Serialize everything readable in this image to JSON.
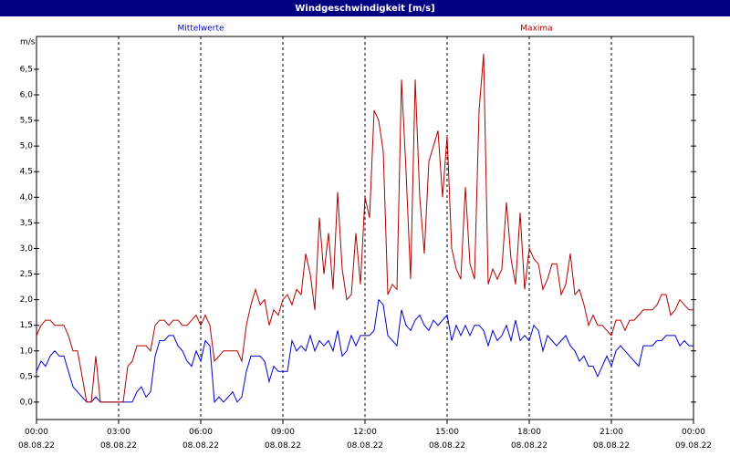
{
  "chart_data": {
    "type": "line",
    "title": "Windgeschwindigkeit [m/s]",
    "y_label": "m/s",
    "xlim": [
      0,
      1440
    ],
    "ylim": [
      -0.34,
      7.14
    ],
    "grid": "x",
    "xticks": [
      {
        "value": 0,
        "label": "00:00\n08.08.22"
      },
      {
        "value": 180,
        "label": "03:00\n08.08.22"
      },
      {
        "value": 360,
        "label": "06:00\n08.08.22"
      },
      {
        "value": 540,
        "label": "09:00\n08.08.22"
      },
      {
        "value": 720,
        "label": "12:00\n08.08.22"
      },
      {
        "value": 900,
        "label": "15:00\n08.08.22"
      },
      {
        "value": 1080,
        "label": "18:00\n08.08.22"
      },
      {
        "value": 1260,
        "label": "21:00\n08.08.22"
      },
      {
        "value": 1440,
        "label": "00:00\n09.08.22"
      }
    ],
    "yticks": [
      {
        "value": 0,
        "label": "0,0"
      },
      {
        "value": 0.5,
        "label": "0,5"
      },
      {
        "value": 1,
        "label": "1,0"
      },
      {
        "value": 1.5,
        "label": "1,5"
      },
      {
        "value": 2,
        "label": "2,0"
      },
      {
        "value": 2.5,
        "label": "2,5"
      },
      {
        "value": 3,
        "label": "3,0"
      },
      {
        "value": 3.5,
        "label": "3,5"
      },
      {
        "value": 4,
        "label": "4,0"
      },
      {
        "value": 4.5,
        "label": "4,5"
      },
      {
        "value": 5,
        "label": "5,0"
      },
      {
        "value": 5.5,
        "label": "5,5"
      },
      {
        "value": 6,
        "label": "6,0"
      },
      {
        "value": 6.5,
        "label": "6,5"
      }
    ],
    "x": [
      0,
      10,
      20,
      30,
      40,
      50,
      60,
      70,
      80,
      90,
      100,
      110,
      120,
      130,
      140,
      150,
      160,
      170,
      180,
      190,
      200,
      210,
      220,
      230,
      240,
      250,
      260,
      270,
      280,
      290,
      300,
      310,
      320,
      330,
      340,
      350,
      360,
      370,
      380,
      390,
      400,
      410,
      420,
      430,
      440,
      450,
      460,
      470,
      480,
      490,
      500,
      510,
      520,
      530,
      540,
      550,
      560,
      570,
      580,
      590,
      600,
      610,
      620,
      630,
      640,
      650,
      660,
      670,
      680,
      690,
      700,
      710,
      720,
      730,
      740,
      750,
      760,
      770,
      780,
      790,
      800,
      810,
      820,
      830,
      840,
      850,
      860,
      870,
      880,
      890,
      900,
      910,
      920,
      930,
      940,
      950,
      960,
      970,
      980,
      990,
      1000,
      1010,
      1020,
      1030,
      1040,
      1050,
      1060,
      1070,
      1080,
      1090,
      1100,
      1110,
      1120,
      1130,
      1140,
      1150,
      1160,
      1170,
      1180,
      1190,
      1200,
      1210,
      1220,
      1230,
      1240,
      1250,
      1260,
      1270,
      1280,
      1290,
      1300,
      1310,
      1320,
      1330,
      1340,
      1350,
      1360,
      1370,
      1380,
      1390,
      1400,
      1410,
      1420,
      1430,
      1440
    ],
    "series": [
      {
        "name": "Mittelwerte",
        "color": "#0000c8",
        "values": [
          0.6,
          0.8,
          0.7,
          0.9,
          1.0,
          0.9,
          0.9,
          0.6,
          0.3,
          0.2,
          0.1,
          0.0,
          0.0,
          0.1,
          0.0,
          0.0,
          0.0,
          0.0,
          0.0,
          0.0,
          0.0,
          0.0,
          0.2,
          0.3,
          0.1,
          0.2,
          0.9,
          1.2,
          1.2,
          1.3,
          1.3,
          1.1,
          1.0,
          0.8,
          0.7,
          1.0,
          0.8,
          1.2,
          1.1,
          0.0,
          0.1,
          0.0,
          0.1,
          0.2,
          0.0,
          0.1,
          0.6,
          0.9,
          0.9,
          0.9,
          0.8,
          0.4,
          0.7,
          0.6,
          0.6,
          0.6,
          1.2,
          1.0,
          1.1,
          1.0,
          1.3,
          1.0,
          1.2,
          1.1,
          1.2,
          1.0,
          1.4,
          0.9,
          1.0,
          1.3,
          1.1,
          1.3,
          1.3,
          1.3,
          1.4,
          2.0,
          1.9,
          1.3,
          1.2,
          1.1,
          1.8,
          1.5,
          1.4,
          1.6,
          1.7,
          1.5,
          1.4,
          1.6,
          1.5,
          1.6,
          1.7,
          1.2,
          1.5,
          1.3,
          1.5,
          1.3,
          1.5,
          1.5,
          1.4,
          1.1,
          1.4,
          1.2,
          1.3,
          1.5,
          1.2,
          1.6,
          1.2,
          1.3,
          1.2,
          1.5,
          1.4,
          1.0,
          1.3,
          1.2,
          1.1,
          1.2,
          1.3,
          1.1,
          1.0,
          0.8,
          0.9,
          0.7,
          0.7,
          0.5,
          0.7,
          0.9,
          0.7,
          1.0,
          1.1,
          1.0,
          0.9,
          0.8,
          0.7,
          1.1,
          1.1,
          1.1,
          1.2,
          1.2,
          1.3,
          1.3,
          1.3,
          1.1,
          1.2,
          1.1,
          1.1
        ]
      },
      {
        "name": "Maxima",
        "color": "#b00000",
        "values": [
          1.3,
          1.5,
          1.6,
          1.6,
          1.5,
          1.5,
          1.5,
          1.3,
          1.0,
          1.0,
          0.5,
          0.0,
          0.0,
          0.9,
          0.0,
          0.0,
          0.0,
          0.0,
          0.0,
          0.0,
          0.7,
          0.8,
          1.1,
          1.1,
          1.1,
          1.0,
          1.5,
          1.6,
          1.6,
          1.5,
          1.6,
          1.6,
          1.5,
          1.5,
          1.6,
          1.7,
          1.5,
          1.7,
          1.5,
          0.8,
          0.9,
          1.0,
          1.0,
          1.0,
          1.0,
          0.8,
          1.5,
          1.9,
          2.2,
          1.9,
          2.0,
          1.5,
          1.8,
          1.7,
          2.0,
          2.1,
          1.9,
          2.2,
          2.1,
          2.9,
          2.5,
          1.8,
          3.6,
          2.5,
          3.3,
          2.2,
          4.1,
          2.6,
          2.0,
          2.1,
          3.3,
          2.3,
          4.0,
          3.6,
          5.7,
          5.5,
          4.9,
          2.1,
          2.3,
          2.2,
          6.3,
          4.5,
          2.4,
          6.3,
          4.0,
          2.9,
          4.7,
          5.0,
          5.3,
          4.0,
          5.2,
          3.0,
          2.6,
          2.4,
          4.2,
          2.7,
          2.4,
          5.7,
          6.8,
          2.3,
          2.6,
          2.4,
          2.6,
          3.9,
          2.8,
          2.3,
          3.7,
          2.2,
          3.0,
          2.8,
          2.7,
          2.2,
          2.4,
          2.7,
          2.7,
          2.1,
          2.3,
          2.9,
          2.1,
          2.2,
          1.9,
          1.5,
          1.7,
          1.5,
          1.5,
          1.4,
          1.3,
          1.6,
          1.6,
          1.4,
          1.6,
          1.6,
          1.7,
          1.8,
          1.8,
          1.8,
          1.9,
          2.1,
          2.1,
          1.7,
          1.8,
          2.0,
          1.9,
          1.8,
          1.8
        ]
      }
    ]
  }
}
